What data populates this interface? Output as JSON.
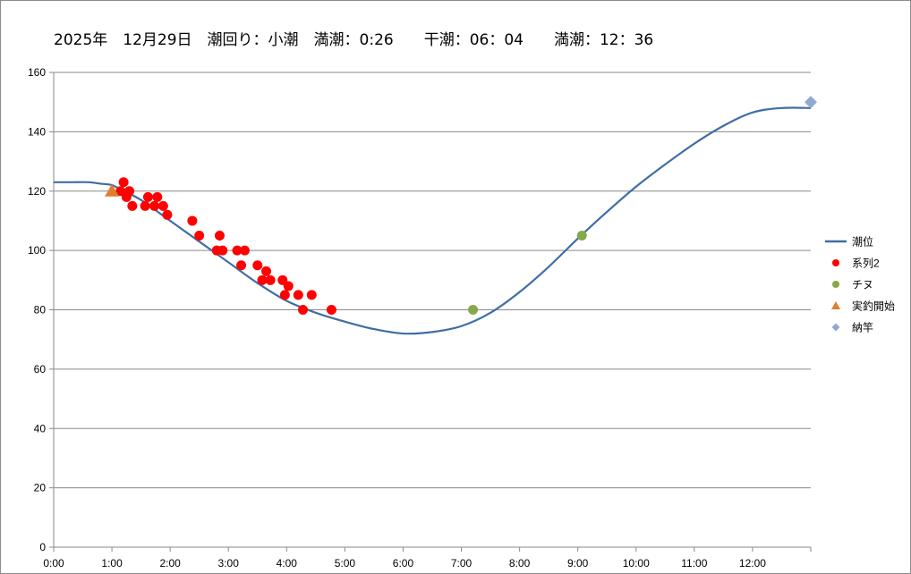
{
  "chart_data": {
    "type": "line",
    "title": "2025年　12月29日　潮回り：小潮　満潮：0:26　　干潮：06：04　　満潮：12：36",
    "xlabel": "",
    "ylabel": "",
    "x_unit": "hours",
    "xlim": [
      0,
      13
    ],
    "ylim": [
      0,
      160
    ],
    "x_ticks": [
      "0:00",
      "1:00",
      "2:00",
      "3:00",
      "4:00",
      "5:00",
      "6:00",
      "7:00",
      "8:00",
      "9:00",
      "10:00",
      "11:00",
      "12:00"
    ],
    "y_ticks": [
      "0",
      "20",
      "40",
      "60",
      "80",
      "100",
      "120",
      "140",
      "160"
    ],
    "grid": "horizontal",
    "legend_position": "right",
    "series": [
      {
        "name": "潮位",
        "kind": "line",
        "color": "#3f6ea6",
        "x": [
          0,
          0.3,
          0.6,
          0.8,
          1.0,
          1.2,
          1.5,
          2.0,
          2.5,
          3.0,
          3.5,
          4.0,
          4.5,
          5.0,
          5.5,
          6.0,
          6.5,
          7.0,
          7.5,
          8.0,
          8.5,
          9.0,
          9.5,
          10.0,
          10.5,
          11.0,
          11.5,
          12.0,
          12.5,
          13.0
        ],
        "y": [
          123,
          123,
          123,
          122.5,
          122,
          120,
          117,
          110,
          103,
          96,
          89,
          83,
          79,
          76,
          73.5,
          72,
          72.5,
          74.5,
          79,
          86,
          94.5,
          104,
          113,
          121.5,
          129,
          136,
          142,
          146.5,
          148,
          148
        ]
      },
      {
        "name": "系列2",
        "kind": "scatter",
        "marker": "circle",
        "color": "#ff0000",
        "x": [
          1.15,
          1.2,
          1.25,
          1.3,
          1.35,
          1.57,
          1.62,
          1.73,
          1.78,
          1.88,
          1.95,
          2.38,
          2.5,
          2.8,
          2.85,
          2.9,
          3.15,
          3.22,
          3.28,
          3.5,
          3.58,
          3.65,
          3.72,
          3.93,
          3.97,
          4.03,
          4.2,
          4.28,
          4.43,
          4.77
        ],
        "y": [
          120,
          123,
          118,
          120,
          115,
          115,
          118,
          115,
          118,
          115,
          112,
          110,
          105,
          100,
          105,
          100,
          100,
          95,
          100,
          95,
          90,
          93,
          90,
          90,
          85,
          88,
          85,
          80,
          85,
          80
        ]
      },
      {
        "name": "チヌ",
        "kind": "scatter",
        "marker": "circle",
        "color": "#86a94a",
        "x": [
          7.2,
          9.07
        ],
        "y": [
          80,
          105
        ]
      },
      {
        "name": "実釣開始",
        "kind": "scatter",
        "marker": "triangle",
        "color": "#e07d2e",
        "x": [
          1.0
        ],
        "y": [
          120
        ]
      },
      {
        "name": "納竿",
        "kind": "scatter",
        "marker": "diamond",
        "color": "#93a9d2",
        "x": [
          13.0
        ],
        "y": [
          150
        ]
      }
    ]
  }
}
